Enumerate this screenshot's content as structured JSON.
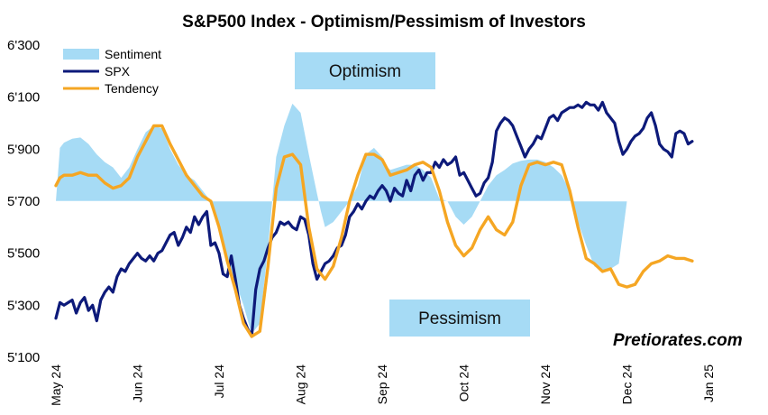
{
  "chart_data": {
    "type": "area",
    "title": "S&P500 Index - Optimism/Pessimism of Investors",
    "y_ticks": [
      "6'300",
      "6'100",
      "5'900",
      "5'700",
      "5'500",
      "5'300",
      "5'100"
    ],
    "y_tick_values": [
      6300,
      6100,
      5900,
      5700,
      5500,
      5300,
      5100
    ],
    "ylim": [
      5100,
      6300
    ],
    "baseline": 5700,
    "x_ticks": [
      "May 24",
      "Jun 24",
      "Jul 24",
      "Aug 24",
      "Sep 24",
      "Oct 24",
      "Nov 24",
      "Dec 24",
      "Jan 25"
    ],
    "xlim": [
      0,
      8
    ],
    "grid": false,
    "legend_position": "top-left",
    "colors": {
      "sentiment": "#a6dbf5",
      "spx": "#0d1a7a",
      "tendency": "#f5a623"
    },
    "annotations": {
      "optimism": "Optimism",
      "pessimism": "Pessimism",
      "brand": "Pretiorates.com"
    },
    "series": [
      {
        "name": "Sentiment",
        "x": [
          0,
          0.05,
          0.1,
          0.2,
          0.3,
          0.4,
          0.5,
          0.6,
          0.7,
          0.8,
          0.9,
          1.0,
          1.1,
          1.2,
          1.3,
          1.4,
          1.5,
          1.6,
          1.7,
          1.8,
          1.9,
          2.0,
          2.1,
          2.2,
          2.3,
          2.4,
          2.5,
          2.6,
          2.7,
          2.8,
          2.9,
          3.0,
          3.1,
          3.2,
          3.25,
          3.3,
          3.4,
          3.5,
          3.6,
          3.7,
          3.8,
          3.9,
          4.0,
          4.05,
          4.1,
          4.2,
          4.3,
          4.4,
          4.5,
          4.6,
          4.7,
          4.8,
          4.9,
          5.0,
          5.1,
          5.2,
          5.3,
          5.4,
          5.5,
          5.6,
          5.65,
          5.7,
          5.8,
          5.9,
          6.0,
          6.1,
          6.2,
          6.3,
          6.4,
          6.5,
          6.6,
          6.7,
          6.8,
          6.9,
          7.0,
          7.1,
          7.2,
          7.3,
          7.4,
          7.5,
          7.6,
          7.7,
          7.8
        ],
        "values": [
          5700,
          5905,
          5925,
          5940,
          5945,
          5920,
          5880,
          5850,
          5830,
          5790,
          5830,
          5900,
          5965,
          5990,
          5980,
          5900,
          5840,
          5800,
          5780,
          5740,
          5700,
          5580,
          5480,
          5390,
          5300,
          5190,
          5230,
          5520,
          5870,
          5990,
          6075,
          6040,
          5880,
          5730,
          5660,
          5600,
          5620,
          5660,
          5700,
          5760,
          5880,
          5905,
          5870,
          5835,
          5820,
          5830,
          5840,
          5840,
          5820,
          5790,
          5710,
          5700,
          5640,
          5610,
          5640,
          5700,
          5760,
          5800,
          5820,
          5845,
          5850,
          5855,
          5860,
          5860,
          5850,
          5830,
          5800,
          5740,
          5620,
          5530,
          5450,
          5430,
          5440,
          5460,
          5700,
          5700,
          5700,
          5700,
          5700,
          5700,
          5700,
          5700,
          5700
        ]
      },
      {
        "name": "SPX",
        "x": [
          0,
          0.05,
          0.1,
          0.15,
          0.2,
          0.25,
          0.3,
          0.35,
          0.4,
          0.45,
          0.5,
          0.55,
          0.6,
          0.65,
          0.7,
          0.75,
          0.8,
          0.85,
          0.9,
          0.95,
          1.0,
          1.05,
          1.1,
          1.15,
          1.2,
          1.25,
          1.3,
          1.35,
          1.4,
          1.45,
          1.5,
          1.55,
          1.6,
          1.65,
          1.7,
          1.75,
          1.8,
          1.85,
          1.9,
          1.95,
          2.0,
          2.05,
          2.1,
          2.15,
          2.2,
          2.25,
          2.3,
          2.35,
          2.4,
          2.45,
          2.5,
          2.55,
          2.6,
          2.65,
          2.7,
          2.75,
          2.8,
          2.85,
          2.9,
          2.95,
          3.0,
          3.05,
          3.1,
          3.15,
          3.2,
          3.25,
          3.3,
          3.35,
          3.4,
          3.45,
          3.5,
          3.55,
          3.6,
          3.65,
          3.7,
          3.75,
          3.8,
          3.85,
          3.9,
          3.95,
          4.0,
          4.05,
          4.1,
          4.15,
          4.2,
          4.25,
          4.3,
          4.35,
          4.4,
          4.45,
          4.5,
          4.55,
          4.6,
          4.65,
          4.7,
          4.75,
          4.8,
          4.85,
          4.9,
          4.95,
          5.0,
          5.05,
          5.1,
          5.15,
          5.2,
          5.25,
          5.3,
          5.35,
          5.4,
          5.45,
          5.5,
          5.55,
          5.6,
          5.65,
          5.7,
          5.75,
          5.8,
          5.85,
          5.9,
          5.95,
          6.0,
          6.05,
          6.1,
          6.15,
          6.2,
          6.25,
          6.3,
          6.35,
          6.4,
          6.45,
          6.5,
          6.55,
          6.6,
          6.65,
          6.7,
          6.75,
          6.8,
          6.85,
          6.9,
          6.95,
          7.0,
          7.05,
          7.1,
          7.15,
          7.2,
          7.25,
          7.3,
          7.35,
          7.4,
          7.45,
          7.5,
          7.55,
          7.6,
          7.65,
          7.7,
          7.75,
          7.8
        ],
        "values": [
          5250,
          5310,
          5300,
          5310,
          5320,
          5270,
          5310,
          5330,
          5280,
          5300,
          5240,
          5320,
          5350,
          5370,
          5350,
          5410,
          5440,
          5430,
          5460,
          5480,
          5500,
          5480,
          5470,
          5490,
          5470,
          5500,
          5510,
          5540,
          5570,
          5580,
          5530,
          5560,
          5600,
          5580,
          5640,
          5610,
          5640,
          5660,
          5530,
          5540,
          5500,
          5420,
          5410,
          5490,
          5400,
          5300,
          5250,
          5210,
          5180,
          5360,
          5440,
          5470,
          5520,
          5560,
          5580,
          5620,
          5610,
          5620,
          5600,
          5590,
          5640,
          5630,
          5570,
          5460,
          5400,
          5430,
          5460,
          5470,
          5490,
          5520,
          5530,
          5570,
          5640,
          5660,
          5690,
          5670,
          5700,
          5720,
          5710,
          5740,
          5760,
          5740,
          5700,
          5750,
          5730,
          5720,
          5780,
          5740,
          5800,
          5820,
          5780,
          5810,
          5810,
          5850,
          5830,
          5860,
          5840,
          5850,
          5870,
          5800,
          5810,
          5780,
          5750,
          5720,
          5730,
          5770,
          5790,
          5850,
          5970,
          6000,
          6020,
          6010,
          5990,
          5950,
          5910,
          5870,
          5900,
          5920,
          5950,
          5940,
          5980,
          6020,
          6030,
          6010,
          6040,
          6050,
          6060,
          6060,
          6070,
          6060,
          6080,
          6070,
          6070,
          6050,
          6080,
          6040,
          6020,
          6000,
          5930,
          5880,
          5900,
          5930,
          5950,
          5960,
          5980,
          6020,
          6040,
          5990,
          5920,
          5900,
          5890,
          5870,
          5960,
          5970,
          5960,
          5920,
          5930
        ]
      },
      {
        "name": "Tendency",
        "x": [
          0,
          0.05,
          0.1,
          0.2,
          0.3,
          0.4,
          0.5,
          0.6,
          0.7,
          0.8,
          0.9,
          1.0,
          1.1,
          1.2,
          1.3,
          1.4,
          1.5,
          1.6,
          1.7,
          1.8,
          1.9,
          2.0,
          2.1,
          2.2,
          2.3,
          2.4,
          2.5,
          2.6,
          2.7,
          2.8,
          2.9,
          3.0,
          3.1,
          3.2,
          3.3,
          3.4,
          3.5,
          3.6,
          3.7,
          3.8,
          3.9,
          4.0,
          4.1,
          4.2,
          4.3,
          4.4,
          4.5,
          4.6,
          4.7,
          4.8,
          4.9,
          5.0,
          5.1,
          5.2,
          5.3,
          5.4,
          5.5,
          5.6,
          5.7,
          5.8,
          5.9,
          6.0,
          6.1,
          6.2,
          6.3,
          6.4,
          6.5,
          6.6,
          6.7,
          6.8,
          6.9,
          7.0,
          7.1,
          7.2,
          7.3,
          7.4,
          7.5,
          7.6,
          7.7,
          7.8
        ],
        "values": [
          5760,
          5790,
          5800,
          5800,
          5810,
          5800,
          5800,
          5770,
          5750,
          5760,
          5790,
          5870,
          5930,
          5990,
          5990,
          5920,
          5860,
          5800,
          5760,
          5720,
          5700,
          5600,
          5470,
          5360,
          5230,
          5180,
          5200,
          5450,
          5750,
          5870,
          5880,
          5840,
          5600,
          5440,
          5400,
          5450,
          5560,
          5700,
          5800,
          5880,
          5880,
          5860,
          5800,
          5810,
          5820,
          5840,
          5850,
          5830,
          5740,
          5620,
          5530,
          5490,
          5520,
          5590,
          5640,
          5590,
          5570,
          5620,
          5760,
          5840,
          5850,
          5840,
          5850,
          5840,
          5740,
          5600,
          5480,
          5460,
          5430,
          5440,
          5380,
          5370,
          5380,
          5430,
          5460,
          5470,
          5490,
          5480,
          5480,
          5470
        ]
      }
    ]
  }
}
